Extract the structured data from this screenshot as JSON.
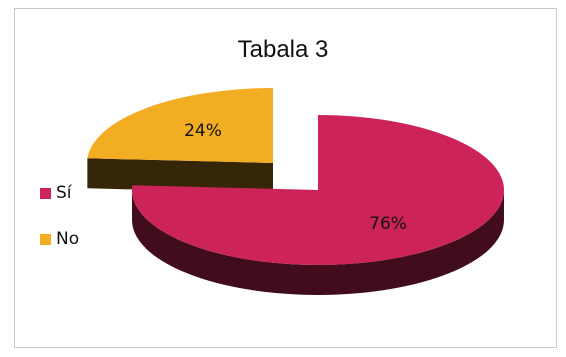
{
  "chart_data": {
    "type": "pie",
    "title": "Tabala 3",
    "categories": [
      "Sí",
      "No"
    ],
    "values": [
      76,
      24
    ],
    "data_labels": [
      "76%",
      "24%"
    ],
    "colors": [
      "#cc2458",
      "#f3ad22"
    ],
    "legend_position": "left",
    "exploded": "No",
    "style": "3d"
  }
}
